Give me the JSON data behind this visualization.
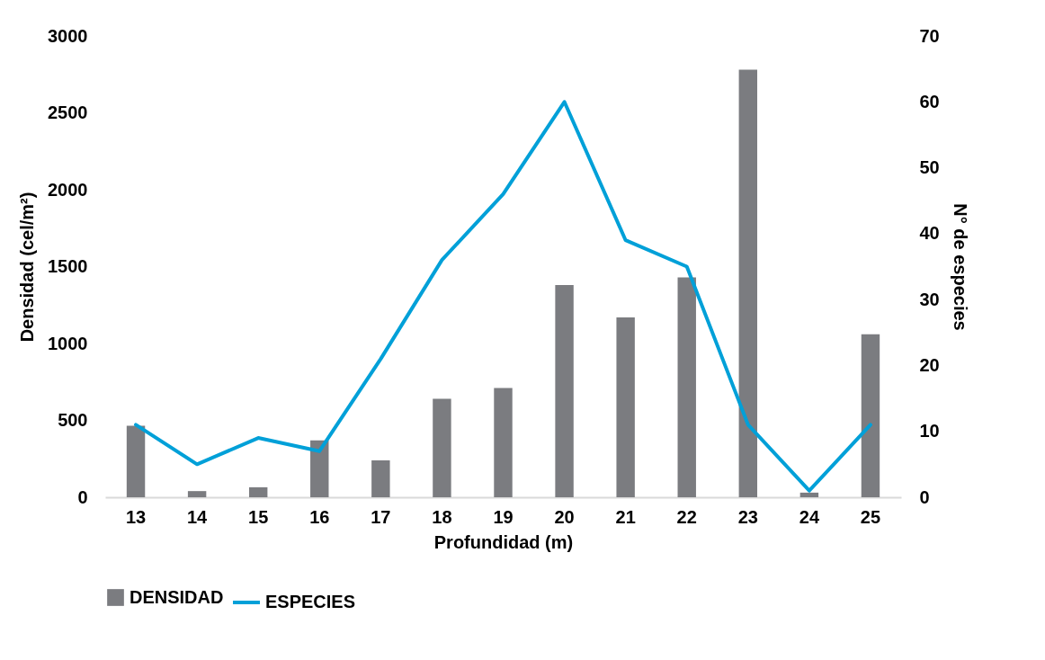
{
  "chart_data": {
    "type": "bar",
    "xlabel": "Profundidad (m)",
    "ylabel": "Densidad (cel/m²)",
    "y2label": "N° de especies",
    "categories": [
      "13",
      "14",
      "15",
      "16",
      "17",
      "18",
      "19",
      "20",
      "21",
      "22",
      "23",
      "24",
      "25"
    ],
    "series": [
      {
        "name": "DENSIDAD",
        "color": "#7b7c80",
        "values": [
          465,
          40,
          65,
          370,
          240,
          640,
          710,
          1380,
          1170,
          1430,
          2780,
          30,
          1060
        ]
      },
      {
        "name": "ESPECIES",
        "type": "line",
        "axis": "y2",
        "color": "#00a0d8",
        "values": [
          11,
          5,
          9,
          7,
          21,
          36,
          46,
          60,
          39,
          35,
          11,
          1,
          11
        ]
      }
    ],
    "ylim": [
      0,
      3000
    ],
    "yticks": [
      0,
      500,
      1000,
      1500,
      2000,
      2500,
      3000
    ],
    "y2lim": [
      0,
      70
    ],
    "y2ticks": [
      0,
      10,
      20,
      30,
      40,
      50,
      60,
      70
    ],
    "legend": "bottom",
    "grid": false
  }
}
